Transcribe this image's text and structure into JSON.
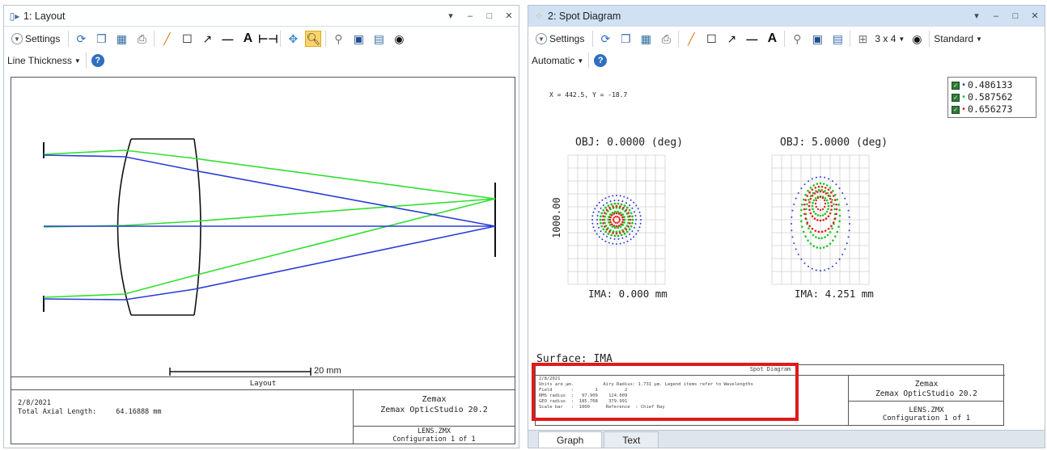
{
  "layout_window": {
    "title": "1: Layout",
    "controls": [
      "▾",
      "–",
      "□",
      "✕"
    ],
    "toolbar": {
      "settings_label": "Settings",
      "line_thickness_label": "Line Thickness"
    },
    "scale_bar_label": "20 mm",
    "caption": "Layout",
    "info": {
      "date": "2/8/2021",
      "total_length_label": "Total Axial Length:",
      "total_length_value": "64.16888 mm",
      "company": "Zemax",
      "product": "Zemax OpticStudio 20.2",
      "lens_file": "LENS.ZMX",
      "configuration": "Configuration 1 of 1"
    }
  },
  "spot_window": {
    "title": "2: Spot Diagram",
    "controls": [
      "▾",
      "–",
      "□",
      "✕"
    ],
    "toolbar": {
      "settings_label": "Settings",
      "grid_label": "3 x 4",
      "standard_label": "Standard",
      "automatic_label": "Automatic"
    },
    "coords": "X = 442.5, Y = -18.7",
    "legend": [
      {
        "value": "0.486133",
        "color": "#2a3bd6"
      },
      {
        "value": "0.587562",
        "color": "#22c422"
      },
      {
        "value": "0.656273",
        "color": "#e02020"
      }
    ],
    "fields": [
      {
        "obj": "OBJ: 0.0000 (deg)",
        "ima": "IMA: 0.000 mm"
      },
      {
        "obj": "OBJ: 5.0000 (deg)",
        "ima": "IMA: 4.251 mm"
      }
    ],
    "scale_label": "1000.00",
    "surface": "Surface: IMA",
    "info": {
      "title": "Spot Diagram",
      "details": "2/8/2021\nUnits are µm.           Airy Radius: 1.731 µm. Legend items refer to Wavelengths\nField       :        1          2\nRMS radius  :   97.909    124.009\nGEO radius  :  185.768    379.991\nScale bar   :  1000      Reference  : Chief Ray",
      "company": "Zemax",
      "product": "Zemax OpticStudio 20.2",
      "lens_file": "LENS.ZMX",
      "configuration": "Configuration 1 of 1"
    },
    "tabs": [
      "Graph",
      "Text"
    ]
  }
}
